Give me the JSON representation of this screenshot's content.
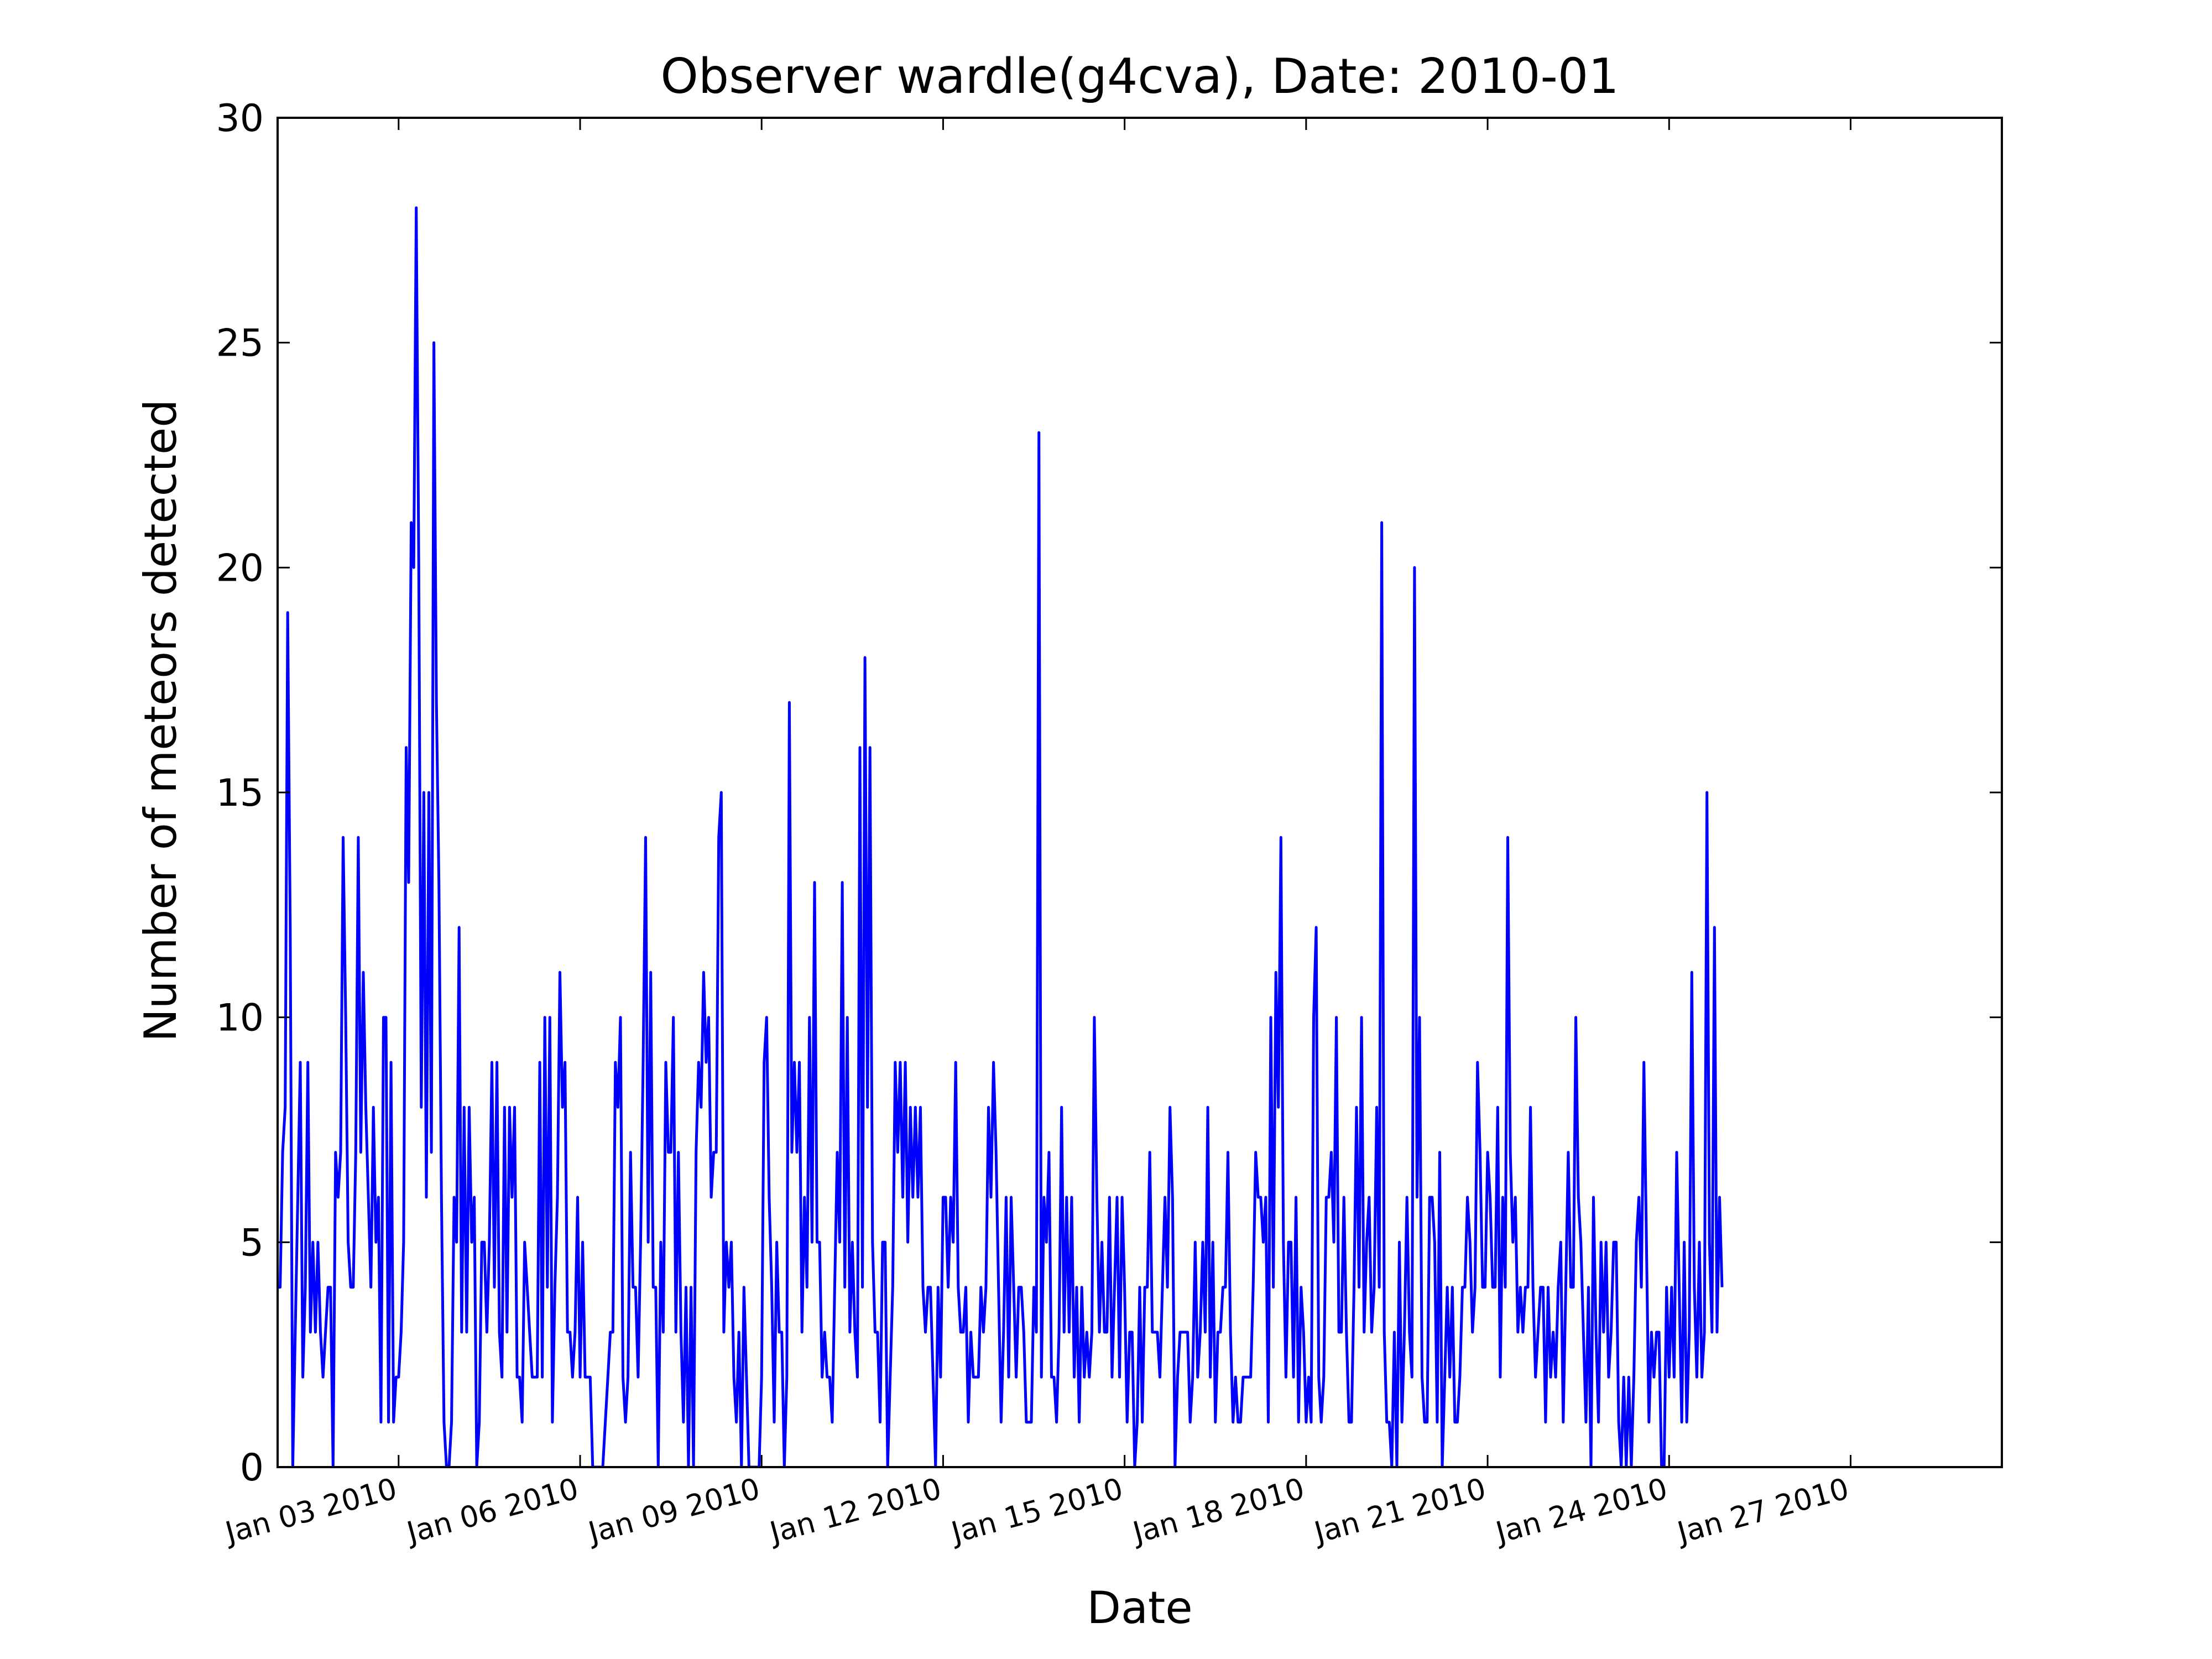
{
  "chart_data": {
    "type": "line",
    "title": "Observer wardle(g4cva), Date: 2010-01",
    "xlabel": "Date",
    "ylabel": "Number of meteors detected",
    "ylim": [
      0,
      30
    ],
    "yticks": [
      0,
      5,
      10,
      15,
      20,
      25,
      30
    ],
    "ytick_labels": [
      "0",
      "5",
      "10",
      "15",
      "20",
      "25",
      "30"
    ],
    "xlim": [
      "2010-01-01T00:00",
      "2010-01-29T12:00"
    ],
    "xticks": [
      "2010-01-03",
      "2010-01-06",
      "2010-01-09",
      "2010-01-12",
      "2010-01-15",
      "2010-01-18",
      "2010-01-21",
      "2010-01-24",
      "2010-01-27"
    ],
    "xtick_labels": [
      "Jan 03 2010",
      "Jan 06 2010",
      "Jan 09 2010",
      "Jan 12 2010",
      "Jan 15 2010",
      "Jan 18 2010",
      "Jan 21 2010",
      "Jan 24 2010",
      "Jan 27 2010"
    ],
    "grid": false,
    "legend": false,
    "x_step": "1 hour",
    "series": [
      {
        "color": "#0000ff",
        "x_start": "2010-01-01T00:00",
        "values": [
          4,
          4,
          7,
          8,
          19,
          12,
          0,
          3,
          6,
          9,
          2,
          4,
          9,
          3,
          5,
          3,
          5,
          3,
          2,
          3,
          4,
          4,
          0,
          7,
          6,
          7,
          14,
          10,
          5,
          4,
          4,
          7,
          14,
          7,
          11,
          8,
          6,
          4,
          8,
          5,
          6,
          1,
          10,
          10,
          1,
          9,
          1,
          2,
          2,
          3,
          5,
          16,
          13,
          21,
          20,
          28,
          20,
          8,
          15,
          6,
          15,
          7,
          25,
          17,
          13,
          6,
          1,
          0,
          0,
          1,
          6,
          5,
          12,
          3,
          8,
          3,
          8,
          5,
          6,
          0,
          1,
          5,
          5,
          3,
          5,
          9,
          4,
          9,
          3,
          2,
          8,
          3,
          8,
          6,
          8,
          2,
          2,
          1,
          5,
          4,
          3,
          2,
          2,
          2,
          9,
          2,
          10,
          4,
          10,
          1,
          4,
          6,
          11,
          8,
          9,
          3,
          3,
          2,
          3,
          6,
          2,
          5,
          2,
          2,
          2,
          0,
          0,
          0,
          0,
          0,
          1,
          2,
          3,
          3,
          9,
          8,
          10,
          2,
          1,
          2,
          7,
          4,
          4,
          2,
          5,
          9,
          14,
          5,
          11,
          4,
          4,
          0,
          5,
          3,
          9,
          7,
          7,
          10,
          3,
          7,
          3,
          1,
          4,
          0,
          4,
          0,
          7,
          9,
          8,
          11,
          9,
          10,
          6,
          7,
          7,
          14,
          15,
          3,
          5,
          4,
          5,
          2,
          1,
          3,
          0,
          4,
          2,
          0,
          0,
          0,
          0,
          0,
          2,
          9,
          10,
          6,
          4,
          1,
          5,
          3,
          3,
          0,
          2,
          17,
          7,
          9,
          7,
          9,
          3,
          6,
          4,
          10,
          5,
          13,
          5,
          5,
          2,
          3,
          2,
          2,
          1,
          4,
          7,
          5,
          13,
          4,
          10,
          3,
          5,
          3,
          2,
          16,
          4,
          18,
          8,
          16,
          5,
          3,
          3,
          1,
          5,
          5,
          0,
          2,
          4,
          9,
          7,
          9,
          6,
          9,
          5,
          8,
          6,
          8,
          6,
          8,
          4,
          3,
          4,
          4,
          2,
          0,
          4,
          2,
          6,
          6,
          4,
          6,
          5,
          9,
          4,
          3,
          3,
          4,
          1,
          3,
          2,
          2,
          2,
          4,
          3,
          4,
          8,
          6,
          9,
          7,
          4,
          1,
          3,
          6,
          2,
          6,
          4,
          2,
          4,
          4,
          3,
          1,
          1,
          1,
          4,
          3,
          23,
          2,
          6,
          5,
          7,
          2,
          2,
          1,
          3,
          8,
          3,
          6,
          3,
          6,
          2,
          4,
          1,
          4,
          2,
          3,
          2,
          3,
          10,
          6,
          3,
          5,
          3,
          3,
          6,
          2,
          4,
          6,
          2,
          6,
          4,
          1,
          3,
          3,
          0,
          1,
          4,
          1,
          4,
          4,
          7,
          3,
          3,
          3,
          2,
          4,
          6,
          4,
          8,
          6,
          0,
          2,
          3,
          3,
          3,
          3,
          1,
          2,
          5,
          2,
          3,
          5,
          3,
          8,
          2,
          5,
          1,
          3,
          3,
          4,
          4,
          7,
          3,
          1,
          2,
          1,
          1,
          2,
          2,
          2,
          2,
          4,
          7,
          6,
          6,
          5,
          6,
          1,
          10,
          4,
          11,
          8,
          14,
          5,
          2,
          5,
          5,
          2,
          6,
          1,
          4,
          3,
          1,
          2,
          1,
          10,
          12,
          2,
          1,
          2,
          6,
          6,
          7,
          5,
          10,
          3,
          3,
          6,
          3,
          1,
          1,
          4,
          8,
          4,
          10,
          3,
          5,
          6,
          3,
          4,
          8,
          4,
          21,
          3,
          1,
          1,
          0,
          3,
          0,
          5,
          1,
          3,
          6,
          3,
          2,
          20,
          6,
          10,
          2,
          1,
          1,
          6,
          6,
          5,
          1,
          7,
          0,
          2,
          4,
          2,
          4,
          1,
          1,
          2,
          4,
          4,
          6,
          5,
          3,
          4,
          9,
          7,
          4,
          4,
          7,
          6,
          4,
          4,
          8,
          2,
          6,
          4,
          14,
          7,
          5,
          6,
          3,
          4,
          3,
          4,
          4,
          8,
          4,
          2,
          3,
          4,
          4,
          1,
          4,
          2,
          3,
          2,
          4,
          5,
          1,
          4,
          7,
          4,
          4,
          10,
          6,
          5,
          3,
          1,
          4,
          0,
          6,
          3,
          1,
          5,
          3,
          5,
          2,
          3,
          5,
          5,
          1,
          0,
          2,
          0,
          2,
          0,
          2,
          5,
          6,
          4,
          9,
          5,
          1,
          3,
          2,
          3,
          3,
          0,
          0,
          4,
          2,
          4,
          2,
          7,
          4,
          1,
          5,
          1,
          3,
          11,
          4,
          2,
          5,
          2,
          3,
          15,
          5,
          3,
          12,
          3,
          6,
          4
        ]
      }
    ]
  }
}
